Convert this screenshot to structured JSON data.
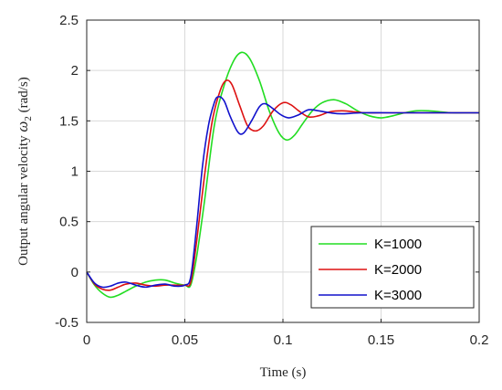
{
  "chart_data": {
    "type": "line",
    "xlabel": "Time (s)",
    "ylabel_prefix": "Output angular velocity ",
    "ylabel_symbol": "ω",
    "ylabel_subscript": "2",
    "ylabel_suffix": " (rad/s)",
    "xlim": [
      0,
      0.2
    ],
    "ylim": [
      -0.5,
      2.5
    ],
    "xticks": [
      0,
      0.05,
      0.1,
      0.15,
      0.2
    ],
    "xtick_labels": [
      "0",
      "0.05",
      "0.1",
      "0.15",
      "0.2"
    ],
    "yticks": [
      -0.5,
      0,
      0.5,
      1,
      1.5,
      2,
      2.5
    ],
    "ytick_labels": [
      "-0.5",
      "0",
      "0.5",
      "1",
      "1.5",
      "2",
      "2.5"
    ],
    "grid": true,
    "legend_position": "bottom-right",
    "series": [
      {
        "name": "K=1000",
        "color": "#22dd22",
        "points": [
          [
            0,
            0
          ],
          [
            0.004,
            -0.13
          ],
          [
            0.008,
            -0.21
          ],
          [
            0.012,
            -0.25
          ],
          [
            0.016,
            -0.23
          ],
          [
            0.02,
            -0.19
          ],
          [
            0.025,
            -0.14
          ],
          [
            0.03,
            -0.1
          ],
          [
            0.035,
            -0.08
          ],
          [
            0.04,
            -0.08
          ],
          [
            0.045,
            -0.11
          ],
          [
            0.05,
            -0.13
          ],
          [
            0.053,
            -0.13
          ],
          [
            0.056,
            0.15
          ],
          [
            0.06,
            0.7
          ],
          [
            0.065,
            1.45
          ],
          [
            0.07,
            1.85
          ],
          [
            0.075,
            2.1
          ],
          [
            0.079,
            2.18
          ],
          [
            0.083,
            2.12
          ],
          [
            0.088,
            1.9
          ],
          [
            0.093,
            1.6
          ],
          [
            0.098,
            1.38
          ],
          [
            0.102,
            1.31
          ],
          [
            0.106,
            1.36
          ],
          [
            0.11,
            1.47
          ],
          [
            0.115,
            1.6
          ],
          [
            0.12,
            1.68
          ],
          [
            0.126,
            1.71
          ],
          [
            0.132,
            1.67
          ],
          [
            0.138,
            1.6
          ],
          [
            0.144,
            1.55
          ],
          [
            0.15,
            1.53
          ],
          [
            0.156,
            1.55
          ],
          [
            0.162,
            1.58
          ],
          [
            0.168,
            1.6
          ],
          [
            0.174,
            1.6
          ],
          [
            0.18,
            1.59
          ],
          [
            0.186,
            1.58
          ],
          [
            0.192,
            1.58
          ],
          [
            0.2,
            1.58
          ]
        ]
      },
      {
        "name": "K=2000",
        "color": "#dd1111",
        "points": [
          [
            0,
            0
          ],
          [
            0.004,
            -0.12
          ],
          [
            0.008,
            -0.17
          ],
          [
            0.012,
            -0.18
          ],
          [
            0.016,
            -0.15
          ],
          [
            0.02,
            -0.12
          ],
          [
            0.025,
            -0.11
          ],
          [
            0.03,
            -0.13
          ],
          [
            0.035,
            -0.14
          ],
          [
            0.04,
            -0.13
          ],
          [
            0.045,
            -0.13
          ],
          [
            0.05,
            -0.13
          ],
          [
            0.053,
            -0.1
          ],
          [
            0.056,
            0.3
          ],
          [
            0.06,
            0.95
          ],
          [
            0.064,
            1.5
          ],
          [
            0.068,
            1.8
          ],
          [
            0.071,
            1.9
          ],
          [
            0.074,
            1.86
          ],
          [
            0.078,
            1.65
          ],
          [
            0.082,
            1.45
          ],
          [
            0.086,
            1.4
          ],
          [
            0.09,
            1.45
          ],
          [
            0.095,
            1.6
          ],
          [
            0.1,
            1.68
          ],
          [
            0.104,
            1.66
          ],
          [
            0.108,
            1.6
          ],
          [
            0.113,
            1.54
          ],
          [
            0.118,
            1.55
          ],
          [
            0.124,
            1.59
          ],
          [
            0.13,
            1.6
          ],
          [
            0.136,
            1.59
          ],
          [
            0.142,
            1.58
          ],
          [
            0.15,
            1.58
          ],
          [
            0.16,
            1.58
          ],
          [
            0.175,
            1.58
          ],
          [
            0.2,
            1.58
          ]
        ]
      },
      {
        "name": "K=3000",
        "color": "#1111cc",
        "points": [
          [
            0,
            0
          ],
          [
            0.004,
            -0.11
          ],
          [
            0.008,
            -0.15
          ],
          [
            0.012,
            -0.14
          ],
          [
            0.016,
            -0.11
          ],
          [
            0.02,
            -0.1
          ],
          [
            0.025,
            -0.13
          ],
          [
            0.03,
            -0.15
          ],
          [
            0.035,
            -0.13
          ],
          [
            0.04,
            -0.12
          ],
          [
            0.045,
            -0.14
          ],
          [
            0.05,
            -0.13
          ],
          [
            0.053,
            -0.05
          ],
          [
            0.056,
            0.45
          ],
          [
            0.059,
            1.05
          ],
          [
            0.062,
            1.45
          ],
          [
            0.065,
            1.68
          ],
          [
            0.067,
            1.74
          ],
          [
            0.07,
            1.7
          ],
          [
            0.073,
            1.55
          ],
          [
            0.077,
            1.39
          ],
          [
            0.08,
            1.38
          ],
          [
            0.084,
            1.5
          ],
          [
            0.088,
            1.64
          ],
          [
            0.091,
            1.67
          ],
          [
            0.095,
            1.62
          ],
          [
            0.099,
            1.56
          ],
          [
            0.103,
            1.53
          ],
          [
            0.108,
            1.56
          ],
          [
            0.113,
            1.61
          ],
          [
            0.118,
            1.6
          ],
          [
            0.124,
            1.58
          ],
          [
            0.13,
            1.57
          ],
          [
            0.14,
            1.58
          ],
          [
            0.155,
            1.58
          ],
          [
            0.175,
            1.58
          ],
          [
            0.2,
            1.58
          ]
        ]
      }
    ]
  }
}
